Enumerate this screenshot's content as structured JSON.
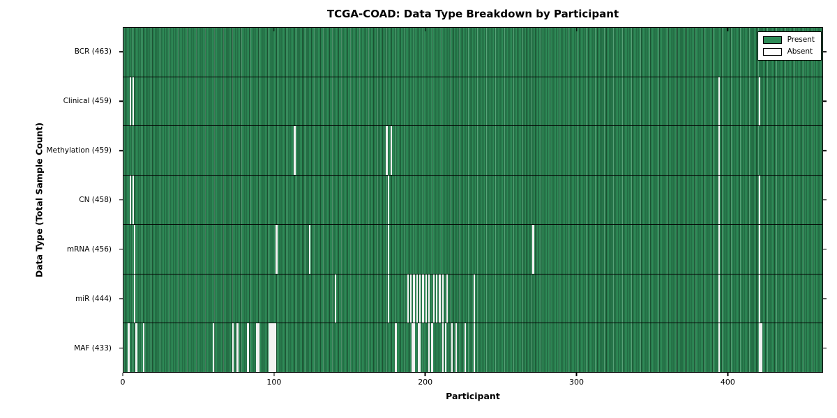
{
  "title": "TCGA-COAD: Data Type Breakdown by Participant",
  "chart_data": {
    "type": "heatmap",
    "title": "TCGA-COAD: Data Type Breakdown by Participant",
    "xlabel": "Participant",
    "ylabel": "Data Type (Total Sample Count)",
    "x_ticks": [
      0,
      100,
      200,
      300,
      400
    ],
    "x_max": 463,
    "grid": false,
    "legend_position": "upper right",
    "colors": {
      "present": "#2e8b57",
      "absent": "#ffffff",
      "edge": "#000000"
    },
    "legend": [
      {
        "label": "Present",
        "color": "#2e8b57"
      },
      {
        "label": "Absent",
        "color": "#ffffff"
      }
    ],
    "rows": [
      {
        "label": "BCR (463)",
        "data_type": "BCR",
        "total": 463,
        "absent_participants": []
      },
      {
        "label": "Clinical (459)",
        "data_type": "Clinical",
        "total": 459,
        "absent_participants": [
          4,
          6,
          394,
          421
        ]
      },
      {
        "label": "Methylation (459)",
        "data_type": "Methylation",
        "total": 459,
        "absent_participants": [
          113,
          174,
          177,
          394
        ]
      },
      {
        "label": "CN (458)",
        "data_type": "CN",
        "total": 458,
        "absent_participants": [
          4,
          6,
          175,
          394,
          421
        ]
      },
      {
        "label": "mRNA (456)",
        "data_type": "mRNA",
        "total": 456,
        "absent_participants": [
          7,
          101,
          123,
          175,
          271,
          394,
          421
        ]
      },
      {
        "label": "miR (444)",
        "data_type": "miR",
        "total": 444,
        "absent_participants": [
          7,
          140,
          175,
          188,
          190,
          192,
          194,
          196,
          198,
          200,
          202,
          205,
          207,
          209,
          211,
          214,
          232,
          394,
          421
        ]
      },
      {
        "label": "MAF (433)",
        "data_type": "MAF",
        "total": 433,
        "absent_participants": [
          3,
          8,
          13,
          59,
          72,
          75,
          82,
          88,
          89,
          96,
          97,
          98,
          99,
          100,
          180,
          191,
          192,
          195,
          196,
          202,
          204,
          211,
          213,
          217,
          220,
          226,
          232,
          394,
          421,
          422
        ]
      }
    ]
  }
}
